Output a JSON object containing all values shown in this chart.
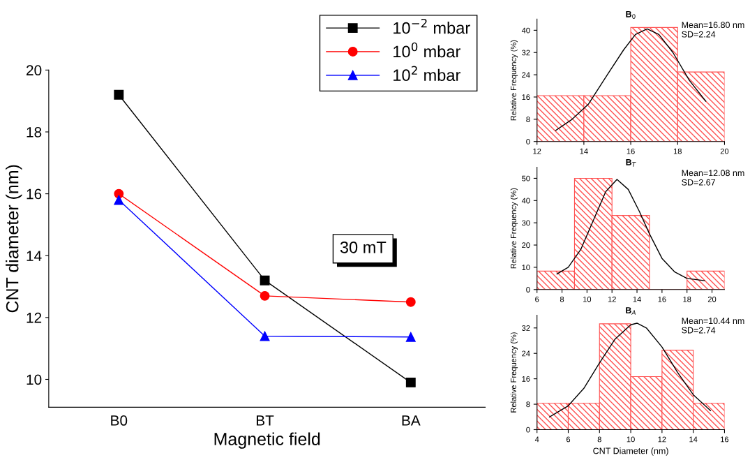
{
  "chart_data": [
    {
      "type": "line",
      "xlabel": "Magnetic field",
      "ylabel": "CNT diameter (nm)",
      "categories": [
        "B0",
        "BT",
        "BA"
      ],
      "ylim": [
        9.1,
        20
      ],
      "yticks": [
        10,
        12,
        14,
        16,
        18,
        20
      ],
      "grid": false,
      "legend": "top right",
      "line_style": "solid",
      "annotations": [
        "30 mT"
      ],
      "series": [
        {
          "name": "10$^{−2}$ mbar",
          "color": "#000000",
          "marker": "square",
          "values": [
            19.2,
            13.2,
            9.9
          ]
        },
        {
          "name": "10$^{0}$ mbar",
          "color": "#ff0000",
          "marker": "circle",
          "values": [
            16.0,
            12.7,
            12.5
          ]
        },
        {
          "name": "10$^{2}$ mbar",
          "color": "#0000ff",
          "marker": "triangle",
          "values": [
            15.8,
            11.4,
            11.37
          ]
        }
      ]
    },
    {
      "type": "histogram",
      "title": "B$_{0}$",
      "ylabel": "Relative Frequency (%)",
      "bins": [
        12,
        14,
        16,
        18,
        20
      ],
      "values": [
        16.5,
        16.5,
        41,
        25
      ],
      "color": "#ff5050",
      "xlim": [
        12,
        20
      ],
      "xticks": [
        12,
        14,
        16,
        18,
        20
      ],
      "ylim": [
        0,
        44
      ],
      "yticks": [
        0,
        8,
        16,
        24,
        32,
        40
      ],
      "grid": false,
      "annotations": [
        "Mean=16.80 nm\nSD=2.24"
      ],
      "series": [
        {
          "type": "line",
          "color": "#000000",
          "x": [
            12.8,
            13.5,
            14.2,
            15,
            15.7,
            16.2,
            16.7,
            17.2,
            17.8,
            18.5,
            19.2
          ],
          "values": [
            4,
            8,
            13.5,
            24,
            33,
            38.5,
            40.5,
            38.5,
            32,
            22,
            14.5
          ]
        }
      ]
    },
    {
      "type": "histogram",
      "title": "B$_{T}$",
      "ylabel": "Relative Frequency (%)",
      "bins": [
        6,
        9,
        12,
        15,
        18,
        21
      ],
      "values": [
        8.3,
        50,
        33.3,
        0,
        8.3
      ],
      "color": "#ff5050",
      "xlim": [
        6,
        21
      ],
      "xticks": [
        6,
        8,
        10,
        12,
        14,
        16,
        18,
        20
      ],
      "ylim": [
        0,
        55
      ],
      "yticks": [
        0,
        10,
        20,
        30,
        40,
        50
      ],
      "grid": false,
      "annotations": [
        "Mean=12.08 nm\nSD=2.67"
      ],
      "series": [
        {
          "type": "line",
          "color": "#000000",
          "x": [
            7.6,
            8.5,
            9.5,
            10.5,
            11.5,
            12.4,
            13.3,
            14.2,
            15,
            16,
            17,
            18,
            19.4
          ],
          "values": [
            7,
            10,
            18,
            31,
            44,
            49.5,
            45,
            35,
            25,
            14,
            8,
            5,
            4
          ]
        }
      ]
    },
    {
      "type": "histogram",
      "title": "B$_{A}$",
      "xlabel": "CNT Diameter (nm)",
      "ylabel": "Relative Frequency (%)",
      "bins": [
        4,
        6,
        8,
        10,
        12,
        14,
        16
      ],
      "values": [
        8.3,
        8.3,
        33.3,
        16.7,
        25,
        8.3
      ],
      "color": "#ff5050",
      "xlim": [
        4,
        16
      ],
      "xticks": [
        4,
        6,
        8,
        10,
        12,
        14,
        16
      ],
      "ylim": [
        0,
        36
      ],
      "yticks": [
        0,
        8,
        16,
        24,
        32
      ],
      "grid": false,
      "annotations": [
        "Mean=10.44 nm\nSD=2.74"
      ],
      "series": [
        {
          "type": "line",
          "color": "#000000",
          "x": [
            4.8,
            6,
            7,
            8,
            9,
            10,
            10.4,
            11,
            12,
            13,
            14,
            15.1
          ],
          "values": [
            4,
            7.5,
            13,
            21,
            28.5,
            33,
            33.5,
            32,
            26,
            18,
            11,
            6
          ]
        }
      ]
    }
  ]
}
